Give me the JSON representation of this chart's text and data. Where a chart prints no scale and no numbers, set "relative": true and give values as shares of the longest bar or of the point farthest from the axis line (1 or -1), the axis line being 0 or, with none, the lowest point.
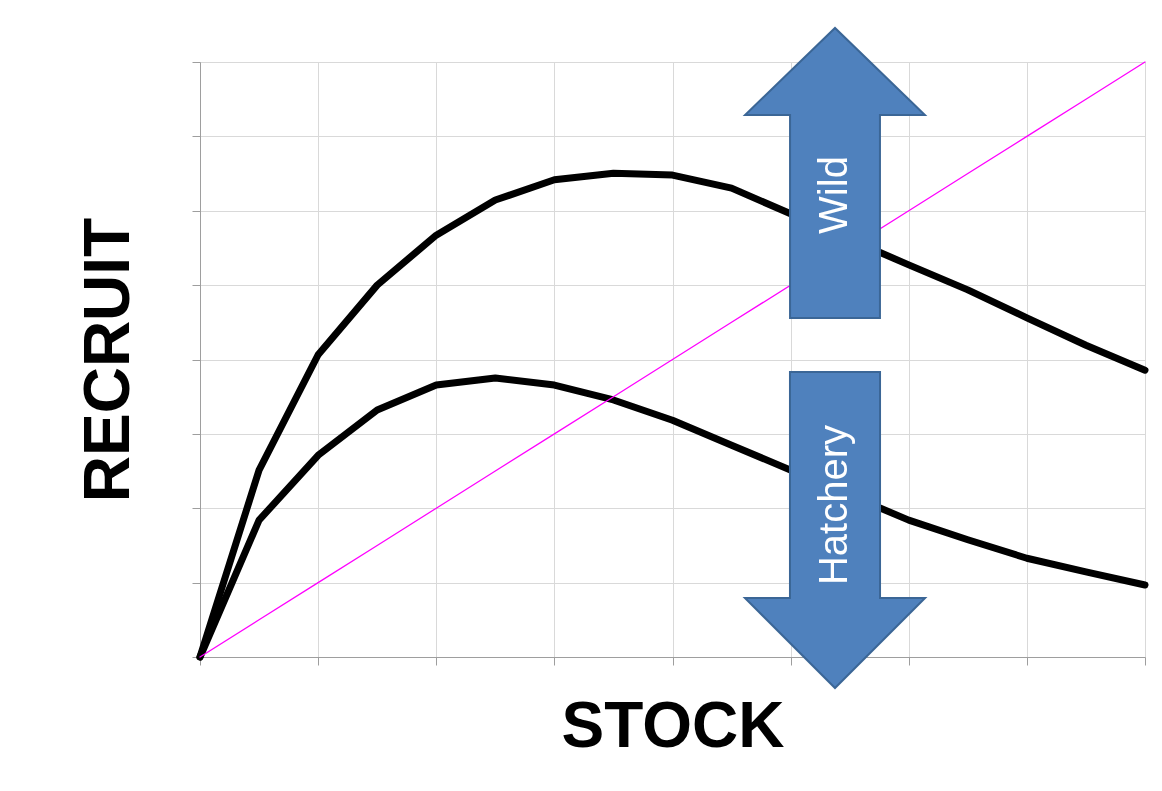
{
  "chart_data": {
    "type": "line",
    "relative": true,
    "xlabel": "STOCK",
    "ylabel": "RECRUIT",
    "categories": [
      null,
      null,
      null,
      null,
      null,
      null,
      null,
      null,
      null,
      null,
      null,
      null,
      null,
      null,
      null,
      null,
      null
    ],
    "series": [
      {
        "color": "#000000",
        "values": [
          0,
          0.314,
          0.508,
          0.625,
          0.709,
          0.768,
          0.802,
          0.813,
          0.81,
          0.788,
          null,
          null,
          0.659,
          0.617,
          0.57,
          0.524,
          0.482
        ]
      },
      {
        "color": "#000000",
        "values": [
          0,
          0.23,
          0.339,
          0.415,
          0.457,
          0.469,
          0.457,
          0.432,
          0.398,
          0.356,
          null,
          null,
          0.23,
          0.197,
          0.166,
          0.143,
          0.121
        ]
      },
      {
        "color": "#ff00ff",
        "values": [
          0,
          0.0625,
          0.125,
          0.1875,
          0.25,
          0.3125,
          0.375,
          0.4375,
          0.5,
          0.5625,
          null,
          null,
          0.75,
          0.8125,
          0.875,
          0.9375,
          1
        ]
      }
    ],
    "annotations": [
      "Wild",
      "Hatchery"
    ],
    "grid": true,
    "tick_labels": false,
    "line_style": "solid",
    "marker": "none"
  }
}
